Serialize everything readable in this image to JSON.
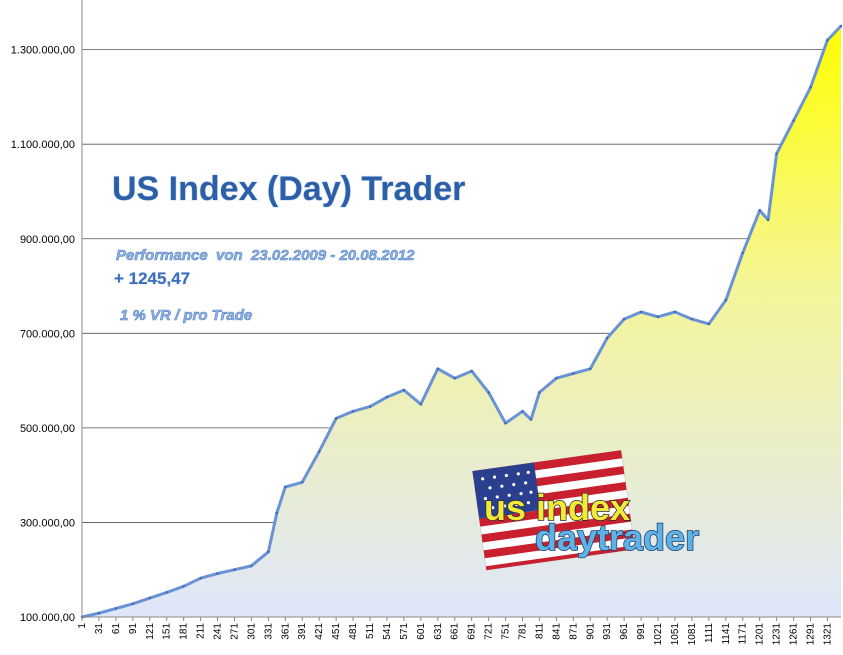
{
  "chart_data": {
    "type": "area",
    "title": "US Index (Day) Trader",
    "performance_label": "Performance  von  23.02.2009 - 20.08.2012",
    "performance_value": "+ 1245,47",
    "risk_label": "1 % VR / pro Trade",
    "y_tick_labels": [
      "100.000,00",
      "300.000,00",
      "500.000,00",
      "700.000,00",
      "900.000,00",
      "1.100.000,00",
      "1.300.000,00"
    ],
    "y_ticks": [
      100000,
      300000,
      500000,
      700000,
      900000,
      1100000,
      1300000
    ],
    "ylim": [
      100000,
      1350000
    ],
    "x_tick_labels": [
      "1",
      "31",
      "61",
      "91",
      "121",
      "151",
      "181",
      "211",
      "241",
      "271",
      "301",
      "331",
      "361",
      "391",
      "421",
      "451",
      "481",
      "511",
      "541",
      "571",
      "601",
      "631",
      "661",
      "691",
      "721",
      "751",
      "781",
      "811",
      "841",
      "871",
      "901",
      "931",
      "961",
      "991",
      "1021",
      "1051",
      "1081",
      "1111",
      "1141",
      "1171",
      "1201",
      "1231",
      "1261",
      "1291",
      "1321"
    ],
    "xlim": [
      1,
      1345
    ],
    "grid": "horizontal",
    "fill_colors": {
      "top": "#ffff00",
      "bottom": "#dfe6fb"
    },
    "line_color": "#6a93d6",
    "series": [
      {
        "x": [
          1,
          31,
          61,
          91,
          121,
          151,
          181,
          211,
          241,
          271,
          301,
          331,
          346,
          361,
          391,
          421,
          451,
          481,
          511,
          541,
          571,
          601,
          631,
          661,
          691,
          721,
          751,
          781,
          796,
          811,
          841,
          871,
          901,
          931,
          961,
          991,
          1021,
          1051,
          1081,
          1111,
          1141,
          1171,
          1201,
          1216,
          1231,
          1261,
          1291,
          1321,
          1345
        ],
        "values": [
          100000,
          108000,
          118000,
          128000,
          140000,
          152000,
          165000,
          182000,
          192000,
          200000,
          208000,
          238000,
          320000,
          375000,
          385000,
          450000,
          520000,
          535000,
          545000,
          565000,
          580000,
          550000,
          625000,
          605000,
          620000,
          575000,
          510000,
          535000,
          518000,
          575000,
          605000,
          615000,
          625000,
          690000,
          730000,
          745000,
          735000,
          745000,
          730000,
          720000,
          770000,
          870000,
          960000,
          940000,
          1080000,
          1150000,
          1220000,
          1320000,
          1350000
        ]
      }
    ],
    "logo": {
      "line1": "us index",
      "line2": "daytrader"
    }
  }
}
